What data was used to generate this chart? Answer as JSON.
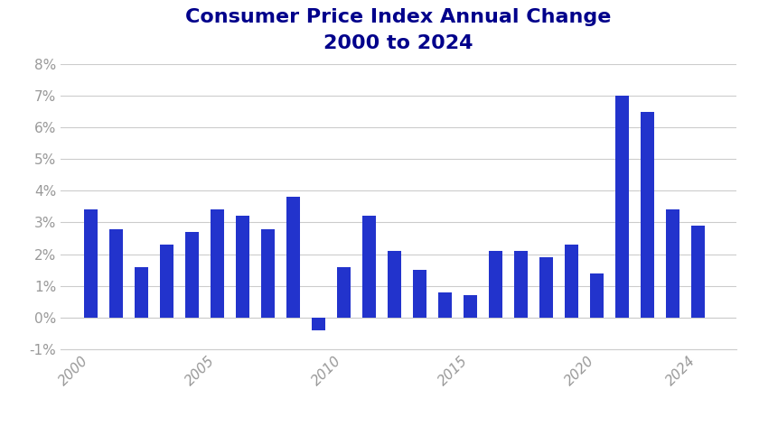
{
  "title_line1": "Consumer Price Index Annual Change",
  "title_line2": "2000 to 2024",
  "years": [
    2000,
    2001,
    2002,
    2003,
    2004,
    2005,
    2006,
    2007,
    2008,
    2009,
    2010,
    2011,
    2012,
    2013,
    2014,
    2015,
    2016,
    2017,
    2018,
    2019,
    2020,
    2021,
    2022,
    2023,
    2024
  ],
  "values": [
    3.4,
    2.8,
    1.6,
    2.3,
    2.7,
    3.4,
    3.2,
    2.8,
    3.8,
    -0.4,
    1.6,
    3.2,
    2.1,
    1.5,
    0.8,
    0.7,
    2.1,
    2.1,
    1.9,
    2.3,
    1.4,
    7.0,
    6.5,
    3.4,
    2.9
  ],
  "bar_color": "#2233cc",
  "background_color": "#ffffff",
  "title_color": "#00008B",
  "tick_color": "#999999",
  "grid_color": "#cccccc",
  "ylim": [
    -1,
    8
  ],
  "yticks": [
    -1,
    0,
    1,
    2,
    3,
    4,
    5,
    6,
    7,
    8
  ],
  "xtick_positions": [
    2000,
    2005,
    2010,
    2015,
    2020,
    2024
  ],
  "title_fontsize": 16,
  "tick_fontsize": 11,
  "bar_width": 0.55
}
